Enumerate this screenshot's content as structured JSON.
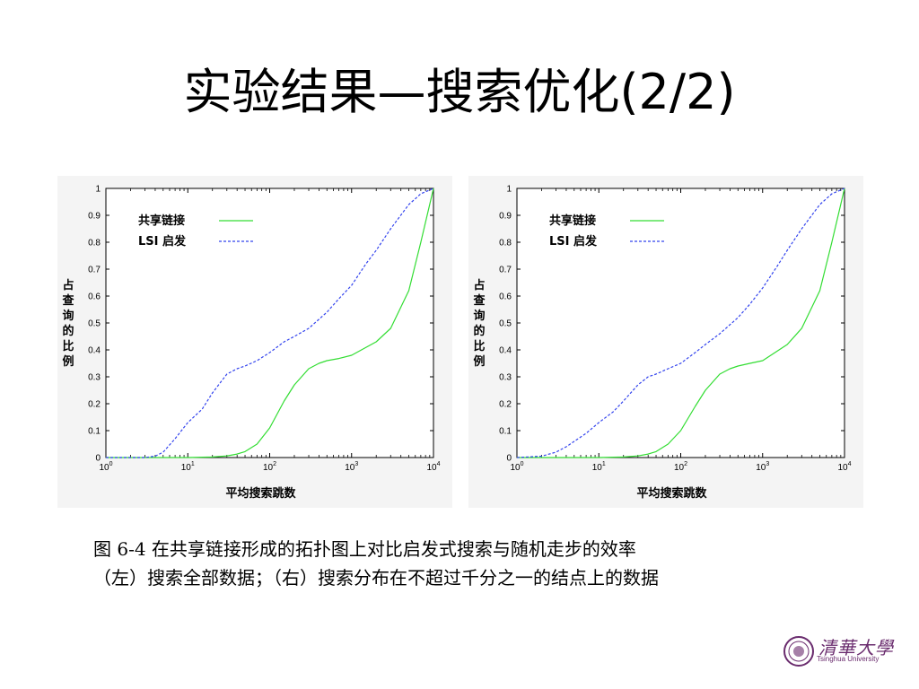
{
  "slide": {
    "title": "实验结果—搜索优化(2/2)",
    "caption_line1": "图 6-4  在共享链接形成的拓扑图上对比启发式搜索与随机走步的效率",
    "caption_line2": "（左）搜索全部数据；（右）搜索分布在不超过千分之一的结点上的数据"
  },
  "logo": {
    "name_cn": "清華大學",
    "name_en": "Tsinghua University"
  },
  "chart_data": [
    {
      "type": "line",
      "title": "",
      "xlabel": "平均搜索跳数",
      "ylabel": "占查询的比例",
      "xscale": "log",
      "xlim": [
        1,
        10000
      ],
      "ylim": [
        0,
        1
      ],
      "x_ticks": [
        "10^0",
        "10^1",
        "10^2",
        "10^3",
        "10^4"
      ],
      "y_ticks": [
        "0",
        "0.1",
        "0.2",
        "0.3",
        "0.4",
        "0.5",
        "0.6",
        "0.7",
        "0.8",
        "0.9",
        "1"
      ],
      "legend_position": "top-left",
      "grid": false,
      "series": [
        {
          "name": "共享链接",
          "color": "#33dd33",
          "dash": "solid",
          "x": [
            1,
            5,
            10,
            20,
            30,
            40,
            50,
            70,
            100,
            150,
            200,
            300,
            400,
            500,
            700,
            1000,
            2000,
            3000,
            5000,
            7000,
            10000
          ],
          "y": [
            0,
            0,
            0,
            0.002,
            0.006,
            0.013,
            0.022,
            0.05,
            0.11,
            0.21,
            0.27,
            0.33,
            0.35,
            0.36,
            0.368,
            0.38,
            0.43,
            0.48,
            0.62,
            0.8,
            1.0
          ]
        },
        {
          "name": "LSI 启发",
          "color": "#3344ee",
          "dash": "dashed",
          "x": [
            1,
            2,
            3,
            4,
            5,
            7,
            10,
            15,
            20,
            30,
            40,
            50,
            70,
            100,
            150,
            200,
            300,
            500,
            700,
            1000,
            1500,
            2000,
            3000,
            5000,
            7000,
            10000
          ],
          "y": [
            0,
            0,
            0,
            0.005,
            0.02,
            0.07,
            0.13,
            0.18,
            0.24,
            0.31,
            0.33,
            0.34,
            0.36,
            0.39,
            0.43,
            0.45,
            0.48,
            0.54,
            0.59,
            0.64,
            0.72,
            0.77,
            0.85,
            0.94,
            0.98,
            1.0
          ]
        }
      ]
    },
    {
      "type": "line",
      "title": "",
      "xlabel": "平均搜索跳数",
      "ylabel": "占查询的比例",
      "xscale": "log",
      "xlim": [
        1,
        10000
      ],
      "ylim": [
        0,
        1
      ],
      "x_ticks": [
        "10^0",
        "10^1",
        "10^2",
        "10^3",
        "10^4"
      ],
      "y_ticks": [
        "0",
        "0.1",
        "0.2",
        "0.3",
        "0.4",
        "0.5",
        "0.6",
        "0.7",
        "0.8",
        "0.9",
        "1"
      ],
      "legend_position": "top-left",
      "grid": false,
      "series": [
        {
          "name": "共享链接",
          "color": "#33dd33",
          "dash": "solid",
          "x": [
            1,
            5,
            10,
            20,
            30,
            40,
            50,
            70,
            100,
            150,
            200,
            300,
            400,
            500,
            700,
            1000,
            2000,
            3000,
            5000,
            7000,
            10000
          ],
          "y": [
            0,
            0,
            0,
            0.002,
            0.006,
            0.013,
            0.022,
            0.05,
            0.1,
            0.19,
            0.25,
            0.31,
            0.33,
            0.34,
            0.35,
            0.36,
            0.42,
            0.48,
            0.62,
            0.8,
            1.0
          ]
        },
        {
          "name": "LSI 启发",
          "color": "#3344ee",
          "dash": "dashed",
          "x": [
            1,
            2,
            3,
            4,
            5,
            7,
            10,
            15,
            20,
            30,
            40,
            50,
            70,
            100,
            150,
            200,
            300,
            500,
            700,
            1000,
            1500,
            2000,
            3000,
            5000,
            7000,
            10000
          ],
          "y": [
            0,
            0.005,
            0.02,
            0.04,
            0.06,
            0.09,
            0.13,
            0.17,
            0.21,
            0.27,
            0.3,
            0.31,
            0.33,
            0.35,
            0.39,
            0.42,
            0.46,
            0.52,
            0.57,
            0.63,
            0.71,
            0.77,
            0.85,
            0.94,
            0.98,
            1.0
          ]
        }
      ]
    }
  ]
}
